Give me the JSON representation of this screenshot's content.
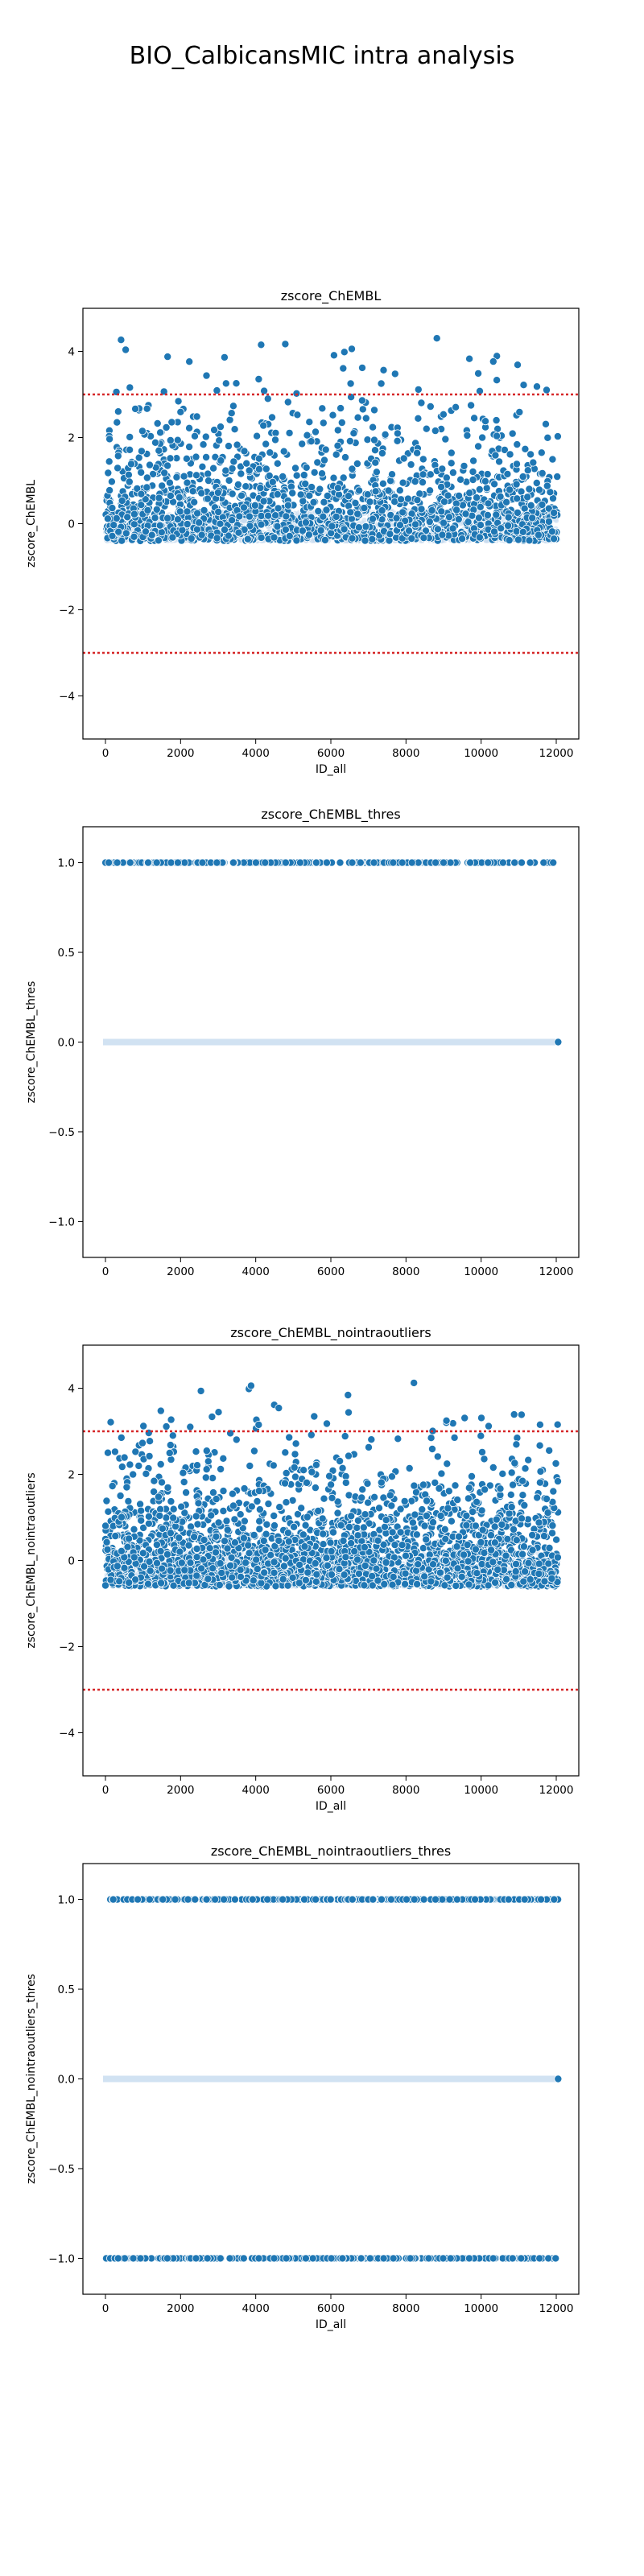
{
  "figure": {
    "title": "BIO_CalbicansMIC intra analysis"
  },
  "colors": {
    "point_fill": "#1f77b4",
    "point_edge": "#ffffff",
    "band_light": "#c6dbef",
    "threshold_line": "#d62728"
  },
  "chart_data": [
    {
      "type": "scatter",
      "title": "zscore_ChEMBL",
      "xlabel": "ID_all",
      "ylabel": "zscore_ChEMBL",
      "xlim": [
        -600,
        12600
      ],
      "ylim": [
        -5,
        5
      ],
      "xticks": [
        0,
        2000,
        4000,
        6000,
        8000,
        10000,
        12000
      ],
      "yticks": [
        -4,
        -2,
        0,
        2,
        4
      ],
      "ytick_labels": [
        "−4",
        "−2",
        "0",
        "2",
        "4"
      ],
      "hlines": [
        3,
        -3
      ],
      "x_range": [
        0,
        12050
      ],
      "dense_band": [
        -0.4,
        0.3
      ],
      "y_max_spread": 5,
      "n_points": 1800,
      "point_style": "dots"
    },
    {
      "type": "scatter",
      "title": "zscore_ChEMBL_thres",
      "xlabel": "",
      "ylabel": "zscore_ChEMBL_thres",
      "xlim": [
        -600,
        12600
      ],
      "ylim": [
        -1.2,
        1.2
      ],
      "xticks": [
        0,
        2000,
        4000,
        6000,
        8000,
        10000,
        12000
      ],
      "yticks": [
        -1.0,
        -0.5,
        0.0,
        0.5,
        1.0
      ],
      "ytick_labels": [
        "−1.0",
        "−0.5",
        "0.0",
        "0.5",
        "1.0"
      ],
      "hlines": [],
      "x_range": [
        0,
        12050
      ],
      "levels": [
        1.0,
        0.0
      ],
      "level_point_counts": [
        260,
        0
      ],
      "point_style": "levels"
    },
    {
      "type": "scatter",
      "title": "zscore_ChEMBL_nointraoutliers",
      "xlabel": "ID_all",
      "ylabel": "zscore_ChEMBL_nointraoutliers",
      "xlim": [
        -600,
        12600
      ],
      "ylim": [
        -5,
        5
      ],
      "xticks": [
        0,
        2000,
        4000,
        6000,
        8000,
        10000,
        12000
      ],
      "yticks": [
        -4,
        -2,
        0,
        2,
        4
      ],
      "ytick_labels": [
        "−4",
        "−2",
        "0",
        "2",
        "4"
      ],
      "hlines": [
        3,
        -3
      ],
      "x_range": [
        0,
        12050
      ],
      "dense_band": [
        -0.6,
        0.2
      ],
      "y_max_spread": 5,
      "n_points": 2600,
      "point_style": "dots"
    },
    {
      "type": "scatter",
      "title": "zscore_ChEMBL_nointraoutliers_thres",
      "xlabel": "ID_all",
      "ylabel": "zscore_ChEMBL_nointraoutliers_thres",
      "xlim": [
        -600,
        12600
      ],
      "ylim": [
        -1.2,
        1.2
      ],
      "xticks": [
        0,
        2000,
        4000,
        6000,
        8000,
        10000,
        12000
      ],
      "yticks": [
        -1.0,
        -0.5,
        0.0,
        0.5,
        1.0
      ],
      "ytick_labels": [
        "−1.0",
        "−0.5",
        "0.0",
        "0.5",
        "1.0"
      ],
      "hlines": [],
      "x_range": [
        0,
        12050
      ],
      "levels": [
        1.0,
        0.0,
        -1.0
      ],
      "level_point_counts": [
        320,
        0,
        260
      ],
      "point_style": "levels"
    }
  ]
}
